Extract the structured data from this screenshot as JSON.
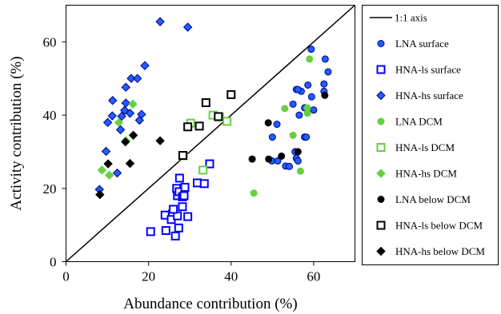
{
  "chart_data": {
    "type": "scatter",
    "title": "",
    "xlabel": "Abundance contribution (%)",
    "ylabel": "Activity contribution (%)",
    "xlim": [
      0,
      70
    ],
    "ylim": [
      0,
      70
    ],
    "x_ticks": [
      0,
      20,
      40,
      60
    ],
    "y_ticks": [
      0,
      20,
      40,
      60
    ],
    "grid": false,
    "legend_position": "right (outside plot)",
    "reference_line": {
      "name": "1:1 axis",
      "x": [
        0,
        70
      ],
      "y": [
        0,
        70
      ]
    },
    "series": [
      {
        "name": "LNA surface",
        "marker": "circle",
        "color": "#1f5fff",
        "filled": true,
        "outline": "#00008b",
        "points": [
          [
            49.9,
            27.5
          ],
          [
            51.3,
            27.5
          ],
          [
            50.0,
            34.0
          ],
          [
            53.2,
            26.1
          ],
          [
            54.1,
            26.0
          ],
          [
            55.8,
            28.2
          ],
          [
            56.2,
            27.5
          ],
          [
            55.5,
            30.0
          ],
          [
            57.8,
            34.0
          ],
          [
            58.2,
            34.0
          ],
          [
            60.0,
            41.4
          ],
          [
            57.8,
            42.0
          ],
          [
            59.5,
            45.0
          ],
          [
            57.0,
            46.5
          ],
          [
            55.8,
            47.0
          ],
          [
            56.2,
            47.0
          ],
          [
            55.0,
            43.0
          ],
          [
            56.5,
            40.0
          ],
          [
            58.6,
            48.2
          ],
          [
            59.4,
            58.0
          ],
          [
            62.5,
            46.5
          ],
          [
            62.5,
            48.5
          ],
          [
            62.8,
            55.3
          ],
          [
            63.5,
            51.8
          ],
          [
            51.1,
            37.5
          ]
        ]
      },
      {
        "name": "HNA-ls surface",
        "marker": "square",
        "color": "#0000ff",
        "filled": false,
        "points": [
          [
            20.5,
            8.2
          ],
          [
            24.2,
            8.5
          ],
          [
            26.5,
            7.0
          ],
          [
            27.3,
            9.2
          ],
          [
            24.0,
            12.7
          ],
          [
            25.8,
            13.0
          ],
          [
            25.5,
            11.5
          ],
          [
            27.0,
            12.5
          ],
          [
            26.0,
            14.3
          ],
          [
            28.2,
            15.0
          ],
          [
            29.5,
            12.3
          ],
          [
            27.0,
            18.0
          ],
          [
            26.8,
            20.0
          ],
          [
            27.4,
            19.1
          ],
          [
            28.2,
            17.7
          ],
          [
            28.6,
            18.0
          ],
          [
            28.8,
            20.3
          ],
          [
            27.5,
            22.8
          ],
          [
            31.8,
            21.5
          ],
          [
            33.5,
            21.3
          ],
          [
            34.8,
            26.7
          ],
          [
            28.3,
            29.0
          ]
        ]
      },
      {
        "name": "HNA-hs surface",
        "marker": "diamond",
        "color": "#1f5fff",
        "filled": true,
        "outline": "#00008b",
        "points": [
          [
            8.1,
            19.7
          ],
          [
            9.7,
            30.1
          ],
          [
            10.1,
            38.0
          ],
          [
            11.2,
            39.8
          ],
          [
            12.4,
            24.2
          ],
          [
            11.3,
            44.0
          ],
          [
            13.5,
            39.7
          ],
          [
            14.2,
            41.3
          ],
          [
            14.5,
            43.3
          ],
          [
            15.5,
            40.5
          ],
          [
            14.5,
            47.6
          ],
          [
            15.8,
            50.0
          ],
          [
            17.3,
            50.0
          ],
          [
            17.8,
            38.6
          ],
          [
            18.3,
            40.2
          ],
          [
            19.1,
            53.5
          ],
          [
            22.8,
            65.5
          ],
          [
            29.5,
            64.0
          ],
          [
            13.2,
            36.0
          ]
        ]
      },
      {
        "name": "LNA DCM",
        "marker": "circle",
        "color": "#66d040",
        "filled": true,
        "points": [
          [
            45.5,
            18.7
          ],
          [
            55.0,
            34.5
          ],
          [
            56.8,
            24.7
          ],
          [
            58.5,
            40.5
          ],
          [
            58.5,
            42.0
          ],
          [
            59.0,
            55.3
          ],
          [
            53.0,
            41.8
          ]
        ]
      },
      {
        "name": "HNA-ls DCM",
        "marker": "square",
        "color": "#66d040",
        "filled": false,
        "points": [
          [
            28.4,
            28.9
          ],
          [
            33.2,
            25.0
          ],
          [
            30.2,
            37.8
          ],
          [
            35.6,
            40.0
          ],
          [
            37.2,
            39.5
          ],
          [
            39.0,
            38.3
          ]
        ]
      },
      {
        "name": "HNA-hs DCM",
        "marker": "diamond",
        "color": "#66d040",
        "filled": true,
        "points": [
          [
            8.7,
            25.0
          ],
          [
            10.5,
            23.6
          ],
          [
            12.8,
            38.0
          ],
          [
            14.5,
            33.0
          ],
          [
            16.2,
            43.0
          ]
        ]
      },
      {
        "name": "LNA below DCM",
        "marker": "circle",
        "color": "#000000",
        "filled": true,
        "points": [
          [
            45.1,
            28.0
          ],
          [
            49.1,
            28.0
          ],
          [
            49.0,
            37.9
          ],
          [
            52.2,
            28.8
          ],
          [
            56.2,
            30.0
          ],
          [
            62.7,
            45.4
          ]
        ]
      },
      {
        "name": "HNA-ls below DCM",
        "marker": "square",
        "color": "#000000",
        "filled": false,
        "points": [
          [
            28.3,
            29.0
          ],
          [
            29.5,
            36.8
          ],
          [
            32.3,
            37.0
          ],
          [
            33.9,
            43.4
          ],
          [
            36.9,
            39.6
          ],
          [
            40.0,
            45.6
          ]
        ]
      },
      {
        "name": "HNA-hs below DCM",
        "marker": "diamond",
        "color": "#000000",
        "filled": true,
        "points": [
          [
            8.2,
            18.3
          ],
          [
            10.2,
            26.7
          ],
          [
            14.4,
            32.7
          ],
          [
            15.5,
            26.8
          ],
          [
            16.3,
            34.5
          ],
          [
            22.8,
            33.0
          ]
        ]
      }
    ]
  }
}
